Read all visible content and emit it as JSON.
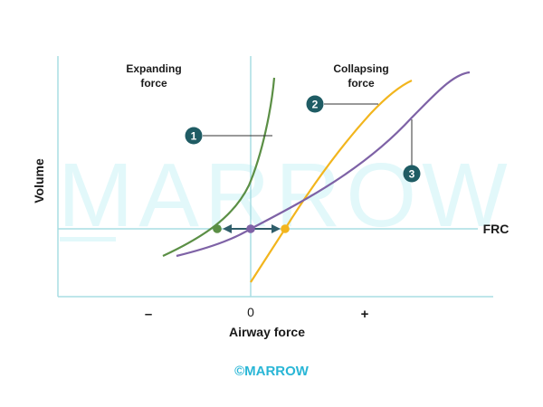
{
  "labels": {
    "expanding_1": "Expanding",
    "expanding_2": "force",
    "collapsing_1": "Collapsing",
    "collapsing_2": "force",
    "ylabel": "Volume",
    "xlabel": "Airway force",
    "frc": "FRC",
    "tick_minus": "–",
    "tick_zero": "0",
    "tick_plus": "+",
    "watermark": "MARROW",
    "copyright": "©MARROW"
  },
  "curves": [
    {
      "id": "1",
      "color": "#5b8f45"
    },
    {
      "id": "2",
      "color": "#f2b51d"
    },
    {
      "id": "3",
      "color": "#7e62a6"
    }
  ],
  "colors": {
    "axis": "#a8dde3",
    "badge": "#1f5c64",
    "arrow": "#2f5e6a",
    "copyright": "#29b6d6"
  }
}
